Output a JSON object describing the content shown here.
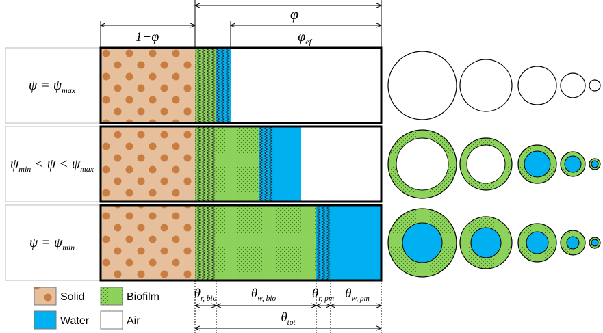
{
  "header": {
    "porosity": {
      "segments": [
        {
          "text": "φ"
        }
      ]
    },
    "solid_fraction": {
      "segments": [
        {
          "text": "1−φ"
        }
      ]
    },
    "effective_porosity": {
      "segments": [
        {
          "text": "φ"
        },
        {
          "sub": "ef"
        }
      ]
    }
  },
  "rows": [
    {
      "label": {
        "segments": [
          {
            "text": "ψ = ψ"
          },
          {
            "sub": "max"
          }
        ]
      }
    },
    {
      "label": {
        "segments": [
          {
            "text": "ψ"
          },
          {
            "sub": "min"
          },
          {
            "text": " < ψ < ψ"
          },
          {
            "sub": "max"
          }
        ]
      }
    },
    {
      "label": {
        "segments": [
          {
            "text": "ψ = ψ"
          },
          {
            "sub": "min"
          }
        ]
      }
    }
  ],
  "bottom": {
    "theta_r_bio": {
      "segments": [
        {
          "text": "θ"
        },
        {
          "sub": "r, bio"
        }
      ]
    },
    "theta_w_bio": {
      "segments": [
        {
          "text": "θ"
        },
        {
          "sub": "w, bio"
        }
      ]
    },
    "theta_r_pm": {
      "segments": [
        {
          "text": "θ"
        },
        {
          "sub": "r, pm"
        }
      ]
    },
    "theta_w_pm": {
      "segments": [
        {
          "text": "θ"
        },
        {
          "sub": "w, pm"
        }
      ]
    },
    "theta_tot": {
      "segments": [
        {
          "text": "θ"
        },
        {
          "sub": "tot"
        }
      ]
    }
  },
  "legend": {
    "solid": "Solid",
    "biofilm": "Biofilm",
    "water": "Water",
    "air": "Air"
  }
}
